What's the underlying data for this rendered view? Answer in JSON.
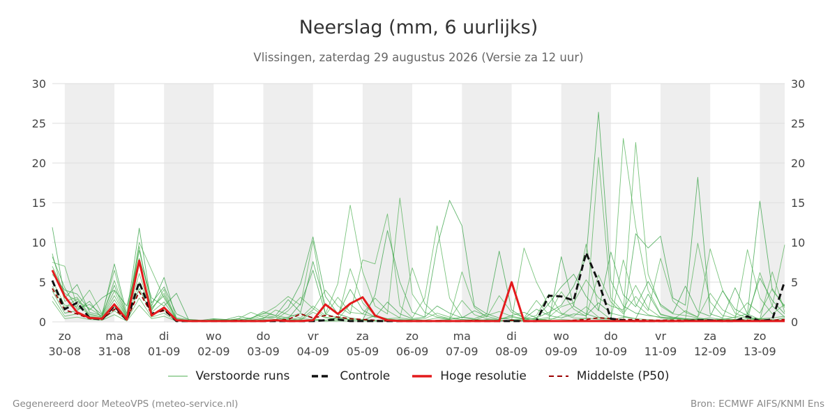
{
  "title": "Neerslag (mm, 6 uurlijks)",
  "subtitle": "Vlissingen, zaterdag 29 augustus 2026 (Versie za 12 uur)",
  "footer": {
    "left": "Gegenereerd door MeteoVPS (meteo-service.nl)",
    "right": "Bron: ECMWF AIFS/KNMI Ens"
  },
  "legend": [
    {
      "label": "Verstoorde runs",
      "color": "#4caf50",
      "style": "thin"
    },
    {
      "label": "Controle",
      "color": "#111111",
      "style": "dashed-thick"
    },
    {
      "label": "Hoge resolutie",
      "color": "#e31a1c",
      "style": "solid-thick"
    },
    {
      "label": "Middelste (P50)",
      "color": "#9b0000",
      "style": "dashed"
    }
  ],
  "chart_data": {
    "type": "line",
    "x_unit": "days since 30-08 00 UTC",
    "xlim": [
      -0.25,
      14.5
    ],
    "ylim": [
      0,
      30
    ],
    "yticks": [
      0,
      5,
      10,
      15,
      20,
      25,
      30
    ],
    "y_axis_both_sides": true,
    "grid": true,
    "weekend_shading": [
      [
        0,
        1
      ],
      [
        2,
        3
      ],
      [
        4,
        5
      ],
      [
        6,
        7
      ],
      [
        8,
        9
      ],
      [
        10,
        11
      ],
      [
        12,
        13
      ],
      [
        14,
        14.5
      ]
    ],
    "day_ticks": [
      {
        "day": "zo",
        "date": "30-08"
      },
      {
        "day": "ma",
        "date": "31-08"
      },
      {
        "day": "di",
        "date": "01-09"
      },
      {
        "day": "wo",
        "date": "02-09"
      },
      {
        "day": "do",
        "date": "03-09"
      },
      {
        "day": "vr",
        "date": "04-09"
      },
      {
        "day": "za",
        "date": "05-09"
      },
      {
        "day": "zo",
        "date": "06-09"
      },
      {
        "day": "ma",
        "date": "07-09"
      },
      {
        "day": "di",
        "date": "08-09"
      },
      {
        "day": "wo",
        "date": "09-09"
      },
      {
        "day": "do",
        "date": "10-09"
      },
      {
        "day": "vr",
        "date": "11-09"
      },
      {
        "day": "za",
        "date": "12-09"
      },
      {
        "day": "zo",
        "date": "13-09"
      }
    ],
    "x": [
      -0.25,
      0,
      0.25,
      0.5,
      0.75,
      1,
      1.25,
      1.5,
      1.75,
      2,
      2.25,
      2.5,
      2.75,
      3,
      3.25,
      3.5,
      3.75,
      4,
      4.25,
      4.5,
      4.75,
      5,
      5.25,
      5.5,
      5.75,
      6,
      6.25,
      6.5,
      6.75,
      7,
      7.25,
      7.5,
      7.75,
      8,
      8.25,
      8.5,
      8.75,
      9,
      9.25,
      9.5,
      9.75,
      10,
      10.25,
      10.5,
      10.75,
      11,
      11.25,
      11.5,
      11.75,
      12,
      12.25,
      12.5,
      12.75,
      13,
      13.25,
      13.5,
      13.75,
      14,
      14.25,
      14.5
    ],
    "series": [
      {
        "name": "Controle",
        "values": [
          5.2,
          1.6,
          2.4,
          0.5,
          0.3,
          2.0,
          0.2,
          5.0,
          1.0,
          1.6,
          0.1,
          0.1,
          0.1,
          0.1,
          0.1,
          0.1,
          0.1,
          0.1,
          0.1,
          0.1,
          0.1,
          0.1,
          0.2,
          0.3,
          0.1,
          0.1,
          0.1,
          0.1,
          0.1,
          0.1,
          0.1,
          0.1,
          0.1,
          0.1,
          0.1,
          0.1,
          0.1,
          0.1,
          0.1,
          0.1,
          3.3,
          3.2,
          2.7,
          8.7,
          5.0,
          0.4,
          0.2,
          0.1,
          0.1,
          0.1,
          0.1,
          0.1,
          0.2,
          0.2,
          0.1,
          0.1,
          0.7,
          0.1,
          0.3,
          5.1
        ]
      },
      {
        "name": "Hoge resolutie",
        "values": [
          6.5,
          3.2,
          1.2,
          0.5,
          0.4,
          2.2,
          0.3,
          7.7,
          0.8,
          1.8,
          0.2,
          0.1,
          0.1,
          0.1,
          0.1,
          0.1,
          0.1,
          0.1,
          0.2,
          0.1,
          0.1,
          0.2,
          2.2,
          1.0,
          2.3,
          3.1,
          0.8,
          0.2,
          0.1,
          0.1,
          0.1,
          0.1,
          0.1,
          0.1,
          0.1,
          0.1,
          0.1,
          5.0,
          0.1,
          0.1,
          0.1,
          0.1,
          0.1,
          0.1,
          0.1,
          0.1,
          0.1,
          0.1,
          0.1,
          0.1,
          0.1,
          0.1,
          0.1,
          0.1,
          0.1,
          0.1,
          0.1,
          0.1,
          0.1,
          0.1
        ]
      },
      {
        "name": "Middelste (P50)",
        "values": [
          4.2,
          1.5,
          1.0,
          0.4,
          0.3,
          1.6,
          0.3,
          3.8,
          1.0,
          1.4,
          0.2,
          0.1,
          0.1,
          0.1,
          0.1,
          0.2,
          0.1,
          0.1,
          0.2,
          0.3,
          1.0,
          0.5,
          0.8,
          0.6,
          0.4,
          0.3,
          0.2,
          0.1,
          0.1,
          0.1,
          0.1,
          0.1,
          0.1,
          0.1,
          0.2,
          0.1,
          0.1,
          0.2,
          0.1,
          0.1,
          0.1,
          0.1,
          0.2,
          0.3,
          0.5,
          0.4,
          0.3,
          0.3,
          0.2,
          0.2,
          0.2,
          0.2,
          0.2,
          0.2,
          0.2,
          0.2,
          0.2,
          0.2,
          0.2,
          0.3
        ]
      }
    ],
    "ensemble": [
      [
        11.9,
        3.0,
        4.7,
        1.2,
        0.8,
        7.3,
        1.0,
        11.8,
        2.0,
        5.6,
        0.4,
        0.2,
        0.1,
        0.3,
        0.2,
        0.4,
        0.2,
        0.5,
        0.6,
        1.8,
        4.8,
        10.7,
        3.2,
        1.0,
        0.5,
        0.3,
        0.2,
        0.1,
        0.3,
        0.2,
        0.1,
        0.2,
        0.1,
        0.2,
        0.1,
        0.3,
        0.2,
        0.1,
        0.2,
        0.5,
        1.2,
        2.1,
        4.5,
        8.1,
        26.4,
        5.2,
        2.0,
        1.1,
        0.8,
        0.6,
        0.5,
        0.3,
        0.4,
        0.2,
        0.3,
        0.6,
        1.0,
        15.2,
        4.0,
        2.0
      ],
      [
        8.6,
        2.6,
        3.1,
        0.9,
        0.6,
        5.2,
        0.7,
        9.5,
        1.4,
        4.1,
        0.2,
        0.1,
        0.1,
        0.2,
        0.3,
        0.2,
        0.5,
        1.0,
        1.9,
        3.2,
        2.1,
        10.2,
        1.0,
        4.8,
        14.7,
        6.3,
        2.0,
        1.0,
        15.6,
        3.5,
        1.2,
        0.6,
        0.4,
        0.3,
        0.2,
        0.2,
        0.1,
        0.2,
        0.3,
        0.4,
        0.2,
        0.8,
        2.0,
        9.8,
        1.5,
        0.3,
        23.1,
        12.0,
        4.0,
        1.0,
        0.5,
        0.4,
        0.3,
        0.2,
        0.4,
        0.3,
        9.1,
        3.0,
        1.0,
        2.2
      ],
      [
        7.5,
        7.0,
        2.0,
        4.0,
        1.0,
        6.5,
        0.6,
        10.0,
        6.5,
        3.0,
        0.5,
        0.3,
        0.2,
        0.1,
        0.2,
        0.3,
        0.4,
        1.1,
        0.8,
        0.5,
        0.3,
        1.5,
        4.0,
        2.0,
        1.0,
        7.8,
        7.3,
        13.6,
        2.0,
        0.5,
        3.0,
        12.1,
        3.0,
        0.6,
        0.3,
        0.2,
        0.1,
        0.2,
        9.3,
        5.0,
        2.0,
        1.0,
        0.5,
        0.4,
        20.7,
        3.0,
        1.2,
        22.6,
        6.0,
        2.0,
        1.0,
        0.8,
        0.5,
        0.3,
        0.2,
        0.3,
        0.2,
        6.2,
        2.0,
        9.7
      ],
      [
        6.0,
        4.0,
        3.5,
        1.5,
        3.0,
        4.0,
        2.0,
        8.0,
        3.0,
        2.0,
        3.6,
        0.2,
        0.1,
        0.2,
        0.1,
        0.2,
        0.1,
        0.3,
        0.2,
        0.4,
        2.3,
        6.5,
        1.0,
        0.5,
        0.3,
        0.2,
        3.4,
        11.5,
        5.0,
        1.2,
        0.6,
        9.5,
        15.3,
        12.1,
        2.0,
        1.0,
        8.9,
        1.5,
        0.5,
        0.3,
        0.2,
        8.2,
        2.0,
        1.0,
        0.5,
        0.3,
        0.2,
        11.1,
        9.3,
        10.8,
        3.0,
        2.1,
        18.2,
        1.0,
        0.5,
        4.3,
        1.0,
        0.3,
        2.0,
        0.6
      ],
      [
        5.2,
        2.1,
        1.9,
        1.0,
        0.6,
        3.3,
        0.4,
        6.1,
        1.2,
        2.5,
        0.3,
        0.1,
        0.1,
        0.2,
        0.1,
        0.1,
        0.2,
        0.4,
        1.5,
        0.9,
        0.5,
        2.0,
        0.8,
        3.1,
        1.2,
        1.0,
        0.6,
        0.4,
        0.5,
        0.3,
        0.4,
        1.1,
        0.6,
        0.3,
        0.2,
        0.8,
        1.3,
        0.7,
        0.4,
        0.3,
        0.6,
        1.9,
        2.4,
        5.3,
        3.0,
        2.0,
        1.5,
        4.6,
        1.7,
        0.6,
        0.4,
        0.3,
        9.9,
        2.5,
        0.8,
        0.5,
        0.6,
        0.4,
        0.5,
        0.7
      ],
      [
        4.5,
        1.8,
        2.9,
        0.7,
        0.5,
        2.8,
        0.3,
        5.0,
        1.8,
        3.3,
        0.2,
        0.1,
        0.1,
        0.1,
        0.2,
        0.1,
        0.3,
        0.8,
        0.6,
        0.3,
        0.2,
        1.2,
        0.5,
        0.4,
        6.7,
        2.4,
        0.8,
        0.4,
        0.2,
        0.3,
        0.2,
        0.5,
        0.3,
        2.7,
        0.9,
        0.4,
        0.3,
        0.6,
        0.4,
        0.8,
        3.5,
        1.1,
        0.7,
        1.9,
        0.6,
        0.4,
        7.8,
        2.2,
        0.9,
        0.5,
        0.3,
        1.4,
        0.6,
        9.2,
        4.0,
        1.1,
        0.5,
        0.3,
        6.3,
        1.2
      ],
      [
        3.9,
        1.1,
        1.4,
        2.6,
        0.4,
        1.9,
        0.2,
        4.2,
        0.9,
        1.5,
        0.1,
        0.1,
        0.1,
        0.1,
        0.1,
        0.2,
        0.1,
        0.2,
        0.3,
        0.6,
        1.1,
        0.4,
        0.2,
        0.6,
        0.3,
        0.2,
        0.8,
        0.3,
        0.2,
        0.1,
        0.1,
        0.2,
        0.3,
        0.6,
        0.4,
        1.0,
        0.5,
        0.3,
        0.4,
        1.6,
        0.8,
        0.5,
        1.0,
        0.8,
        2.4,
        1.1,
        0.7,
        0.4,
        3.5,
        0.9,
        0.6,
        0.4,
        0.3,
        0.5,
        0.3,
        0.2,
        0.4,
        0.3,
        0.2,
        0.5
      ],
      [
        3.2,
        0.7,
        1.0,
        0.5,
        0.3,
        1.4,
        0.2,
        3.0,
        0.6,
        1.1,
        0.1,
        0.1,
        0.1,
        0.1,
        0.1,
        0.1,
        0.1,
        0.1,
        0.2,
        0.2,
        0.4,
        0.3,
        0.1,
        0.2,
        0.3,
        0.2,
        0.1,
        0.2,
        0.1,
        0.1,
        0.2,
        0.1,
        0.2,
        0.1,
        0.3,
        0.2,
        0.1,
        0.2,
        0.1,
        0.2,
        0.4,
        0.3,
        0.2,
        0.5,
        0.3,
        0.2,
        0.6,
        0.4,
        0.3,
        0.2,
        0.4,
        0.3,
        0.2,
        0.3,
        0.2,
        0.3,
        0.2,
        0.4,
        0.3,
        0.2
      ],
      [
        2.6,
        0.4,
        0.6,
        0.3,
        0.2,
        0.9,
        0.1,
        2.1,
        0.4,
        0.7,
        0.1,
        0.1,
        0.1,
        0.1,
        0.1,
        0.1,
        0.1,
        0.1,
        0.1,
        0.1,
        0.2,
        0.2,
        0.1,
        0.1,
        0.1,
        0.1,
        0.1,
        0.1,
        0.1,
        0.1,
        0.1,
        0.1,
        0.1,
        0.1,
        0.1,
        0.1,
        0.1,
        0.1,
        0.1,
        0.1,
        0.2,
        0.1,
        0.1,
        0.2,
        0.1,
        0.1,
        0.2,
        0.1,
        0.1,
        0.1,
        0.2,
        0.1,
        0.1,
        0.1,
        0.1,
        0.1,
        0.1,
        0.2,
        0.1,
        0.1
      ],
      [
        8.2,
        4.3,
        1.6,
        2.2,
        0.9,
        4.6,
        0.5,
        9.0,
        2.4,
        4.4,
        1.0,
        0.3,
        0.2,
        0.4,
        0.3,
        0.7,
        0.4,
        1.3,
        0.8,
        2.8,
        1.2,
        7.6,
        2.1,
        0.9,
        4.1,
        1.5,
        0.6,
        2.5,
        1.0,
        0.4,
        0.6,
        2.0,
        1.1,
        0.5,
        1.4,
        0.7,
        0.3,
        0.8,
        1.2,
        0.5,
        2.3,
        4.4,
        6.0,
        3.2,
        1.4,
        8.8,
        3.4,
        1.9,
        5.1,
        2.2,
        1.1,
        4.5,
        1.3,
        0.7,
        3.9,
        1.6,
        0.8,
        5.5,
        2.7,
        1.0
      ],
      [
        7.0,
        3.6,
        2.6,
        1.7,
        0.7,
        3.9,
        0.4,
        7.2,
        1.6,
        3.6,
        0.3,
        0.2,
        0.1,
        0.3,
        0.2,
        0.4,
        1.2,
        0.6,
        0.3,
        1.4,
        3.1,
        1.7,
        0.6,
        0.3,
        2.2,
        1.0,
        3.0,
        1.4,
        0.5,
        6.8,
        2.3,
        0.8,
        0.4,
        6.3,
        1.8,
        0.6,
        3.3,
        1.2,
        0.5,
        2.7,
        0.9,
        3.8,
        1.6,
        0.7,
        5.9,
        2.5,
        1.0,
        3.2,
        1.4,
        8.0,
        2.6,
        1.2,
        0.6,
        3.6,
        1.5,
        0.7,
        2.4,
        1.1,
        4.2,
        1.8
      ]
    ]
  }
}
